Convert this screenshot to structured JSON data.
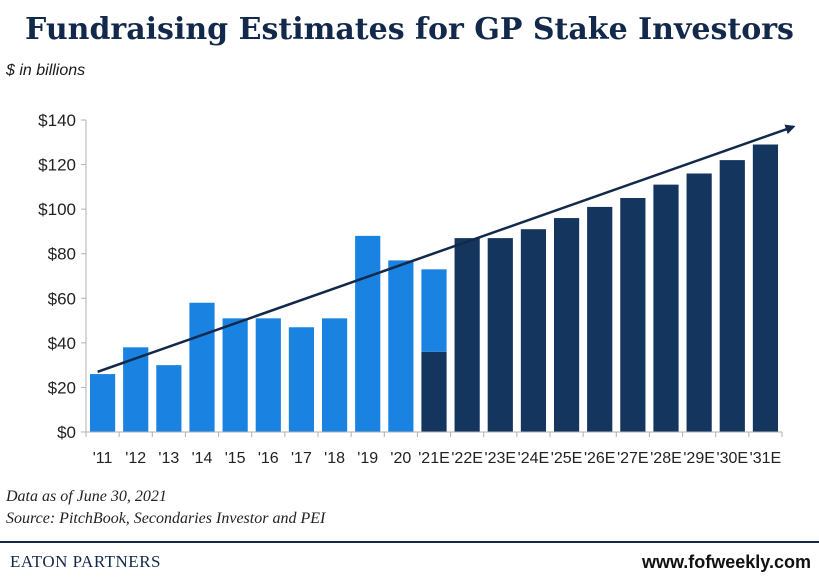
{
  "header": {
    "title": "Fundraising Estimates for GP Stake Investors",
    "unit": "$ in billions"
  },
  "chart_data": {
    "type": "bar",
    "stacked": true,
    "categories": [
      "'11",
      "'12",
      "'13",
      "'14",
      "'15",
      "'16",
      "'17",
      "'18",
      "'19",
      "'20",
      "'21E",
      "'22E",
      "'23E",
      "'24E",
      "'25E",
      "'26E",
      "'27E",
      "'28E",
      "'29E",
      "'30E",
      "'31E"
    ],
    "series": [
      {
        "color": "#13355e",
        "values": [
          0,
          0,
          0,
          0,
          0,
          0,
          0,
          0,
          0,
          0,
          36,
          87,
          87,
          91,
          96,
          101,
          105,
          111,
          116,
          122,
          129
        ]
      },
      {
        "color": "#1a83e2",
        "values": [
          26,
          38,
          30,
          58,
          51,
          51,
          47,
          51,
          88,
          77,
          37,
          0,
          0,
          0,
          0,
          0,
          0,
          0,
          0,
          0,
          0
        ]
      }
    ],
    "ylim": [
      0,
      140
    ],
    "yticks": [
      0,
      20,
      40,
      60,
      80,
      100,
      120,
      140
    ],
    "ytick_labels": [
      "$0",
      "$20",
      "$40",
      "$60",
      "$80",
      "$100",
      "$120",
      "$140"
    ],
    "trend_arrow": {
      "from": [
        "'11",
        27
      ],
      "to": [
        "'31E",
        137
      ]
    },
    "grid": false,
    "legend": "none"
  },
  "footer": {
    "data_note": "Data as of June 30, 2021",
    "source": "Source: PitchBook, Secondaries Investor and PEI",
    "brand": "EATON PARTNERS",
    "website": "www.fofweekly.com"
  }
}
